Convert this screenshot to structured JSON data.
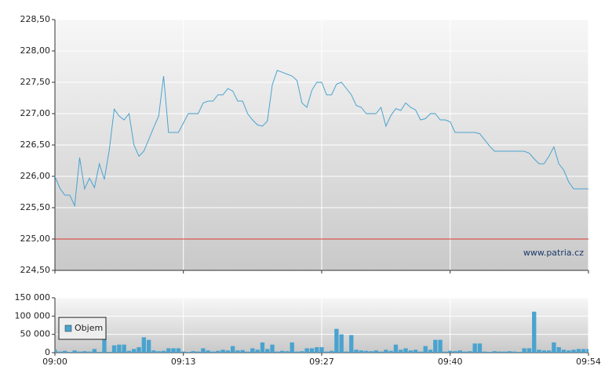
{
  "chart_data": [
    {
      "type": "line",
      "xlim": [
        "09:00",
        "09:54"
      ],
      "ylim": [
        224.5,
        228.5
      ],
      "yticks": [
        {
          "value": 228.5,
          "label": "228,50"
        },
        {
          "value": 228,
          "label": "228,00"
        },
        {
          "value": 227.5,
          "label": "227,50"
        },
        {
          "value": 227,
          "label": "227,00"
        },
        {
          "value": 226.5,
          "label": "226,50"
        },
        {
          "value": 226,
          "label": "226,00"
        },
        {
          "value": 225.5,
          "label": "225,50"
        },
        {
          "value": 225,
          "label": "225,00"
        },
        {
          "value": 224.5,
          "label": "224,50"
        }
      ],
      "reference_line": 225,
      "reference_color": "#d83a2e",
      "color": "#4aa3cf",
      "grid": true,
      "annotation": "www.patria.cz",
      "values": [
        226.0,
        225.81,
        225.7,
        225.7,
        225.53,
        226.3,
        225.8,
        225.97,
        225.82,
        226.2,
        225.95,
        226.42,
        227.07,
        226.96,
        226.9,
        227.0,
        226.5,
        226.32,
        226.4,
        226.59,
        226.78,
        226.96,
        227.6,
        226.7,
        226.7,
        226.7,
        226.85,
        227.0,
        227.0,
        227.0,
        227.17,
        227.2,
        227.2,
        227.3,
        227.3,
        227.4,
        227.36,
        227.2,
        227.2,
        227.0,
        226.9,
        226.82,
        226.8,
        226.88,
        227.46,
        227.69,
        227.66,
        227.63,
        227.6,
        227.53,
        227.17,
        227.1,
        227.37,
        227.5,
        227.5,
        227.3,
        227.3,
        227.47,
        227.5,
        227.4,
        227.3,
        227.13,
        227.1,
        227.0,
        227.0,
        227.0,
        227.1,
        226.8,
        226.97,
        227.08,
        227.05,
        227.17,
        227.1,
        227.06,
        226.9,
        226.92,
        227.0,
        227.0,
        226.9,
        226.9,
        226.87,
        226.7,
        226.7,
        226.7,
        226.7,
        226.7,
        226.68,
        226.58,
        226.48,
        226.4,
        226.4,
        226.4,
        226.4,
        226.4,
        226.4,
        226.4,
        226.37,
        226.28,
        226.2,
        226.2,
        226.32,
        226.47,
        226.2,
        226.1,
        225.91,
        225.8,
        225.8,
        225.8,
        225.8
      ]
    },
    {
      "type": "bar",
      "xlim": [
        "09:00",
        "09:54"
      ],
      "xticks": [
        "09:00",
        "09:13",
        "09:27",
        "09:40",
        "09:54"
      ],
      "ylim": [
        0,
        150000
      ],
      "yticks": [
        {
          "value": 150000,
          "label": "150 000"
        },
        {
          "value": 100000,
          "label": "100 000"
        },
        {
          "value": 50000,
          "label": "50 000"
        },
        0
      ],
      "grid": true,
      "legend": "upper left",
      "series": [
        {
          "name": "Objem",
          "color": "#4aa3cf",
          "values": [
            8000,
            3000,
            5000,
            2000,
            6000,
            3000,
            4000,
            3000,
            10000,
            2000,
            85000,
            2000,
            20000,
            22000,
            22000,
            5000,
            10000,
            15000,
            42000,
            35000,
            6000,
            4000,
            5000,
            12000,
            12000,
            12000,
            3000,
            2000,
            4000,
            3000,
            12000,
            6000,
            3000,
            5000,
            8000,
            6000,
            18000,
            6000,
            7000,
            3000,
            12000,
            8000,
            28000,
            10000,
            22000,
            3000,
            5000,
            4000,
            28000,
            3000,
            4000,
            12000,
            12000,
            15000,
            15000,
            3000,
            5000,
            65000,
            50000,
            3000,
            48000,
            8000,
            6000,
            5000,
            4000,
            6000,
            3000,
            8000,
            5000,
            22000,
            8000,
            12000,
            6000,
            8000,
            3000,
            18000,
            8000,
            35000,
            35000,
            3000,
            5000,
            4000,
            6000,
            3000,
            4000,
            25000,
            25000,
            3000,
            2000,
            4000,
            3000,
            3000,
            4000,
            3000,
            2000,
            12000,
            12000,
            112000,
            8000,
            6000,
            6000,
            28000,
            15000,
            8000,
            6000,
            8000,
            10000,
            10000,
            10000
          ]
        }
      ]
    }
  ]
}
